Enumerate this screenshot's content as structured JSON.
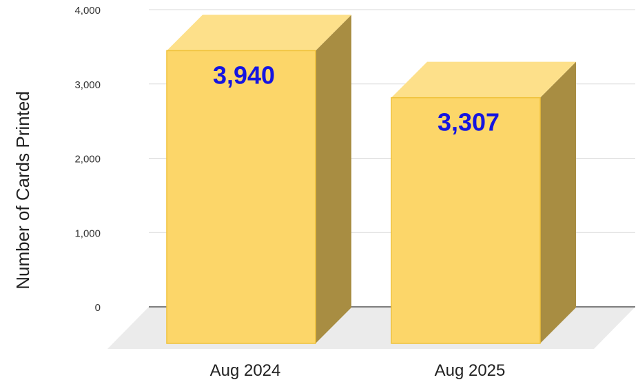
{
  "chart_data": {
    "type": "bar",
    "style": "3d",
    "title": "",
    "xlabel": "",
    "ylabel": "Number of Cards Printed",
    "categories": [
      "Aug 2024",
      "Aug 2025"
    ],
    "values": [
      3940,
      3307
    ],
    "data_labels": [
      "3,940",
      "3,307"
    ],
    "ylim": [
      0,
      4000
    ],
    "yticks": [
      0,
      1000,
      2000,
      3000,
      4000
    ],
    "ytick_labels": [
      "0",
      "1,000",
      "2,000",
      "3,000",
      "4,000"
    ],
    "grid": true,
    "legend": "none",
    "colors": {
      "bar_front": "#FCD669",
      "bar_top": "#FDE08A",
      "bar_side": "#A88D42",
      "bar_edge": "#F0C23A",
      "data_label": "#1515E0",
      "gridline": "#D9D9D9",
      "floor": "#EBEBEB",
      "baseline": "#333333"
    }
  }
}
